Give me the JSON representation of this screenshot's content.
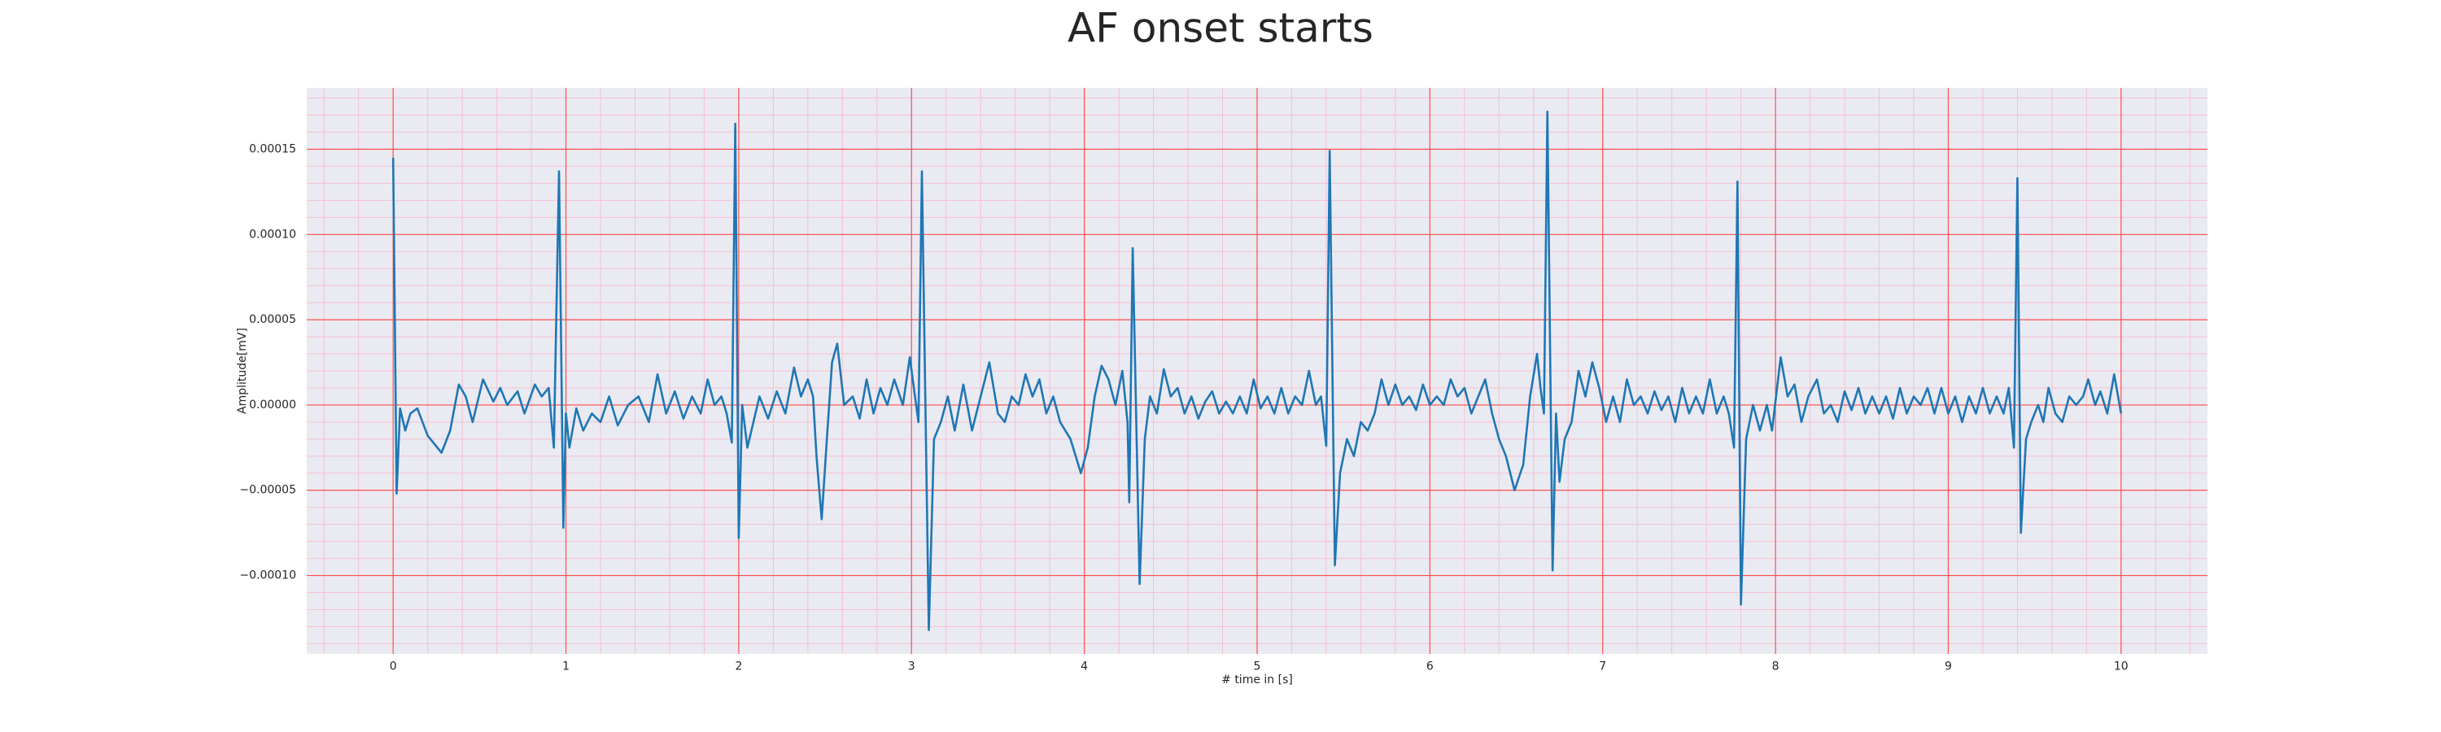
{
  "chart_data": {
    "type": "line",
    "title": "AF onset starts",
    "x_label": "# time in [s]",
    "y_label": "Amplitude[mV]",
    "xlim": [
      -0.5,
      10.5
    ],
    "ylim": [
      -0.000146,
      0.000186
    ],
    "xticks": [
      0,
      1,
      2,
      3,
      4,
      5,
      6,
      7,
      8,
      9,
      10
    ],
    "yticks": [
      {
        "value": -0.0001,
        "label": "−0.00010"
      },
      {
        "value": -5e-05,
        "label": "−0.00005"
      },
      {
        "value": 0,
        "label": "0.00000"
      },
      {
        "value": 5e-05,
        "label": "0.00005"
      },
      {
        "value": 0.0001,
        "label": "0.00010"
      },
      {
        "value": 0.00015,
        "label": "0.00015"
      }
    ],
    "grid": true,
    "minor_grid": true,
    "grid_color": "#ff4d4d",
    "minor_grid_color": "#f6c1cf",
    "background_color": "#eaeaf2",
    "series": [
      {
        "color": "#1f77b4",
        "x": [
          0,
          0.02,
          0.04,
          0.07,
          0.1,
          0.14,
          0.2,
          0.28,
          0.33,
          0.38,
          0.42,
          0.46,
          0.52,
          0.58,
          0.62,
          0.66,
          0.72,
          0.76,
          0.82,
          0.86,
          0.9,
          0.93,
          0.96,
          0.985,
          1.0,
          1.02,
          1.06,
          1.1,
          1.15,
          1.2,
          1.25,
          1.3,
          1.36,
          1.42,
          1.48,
          1.53,
          1.58,
          1.63,
          1.68,
          1.73,
          1.78,
          1.82,
          1.86,
          1.9,
          1.93,
          1.96,
          1.98,
          2.0,
          2.02,
          2.05,
          2.12,
          2.17,
          2.22,
          2.27,
          2.32,
          2.36,
          2.4,
          2.43,
          2.45,
          2.48,
          2.51,
          2.54,
          2.57,
          2.61,
          2.66,
          2.7,
          2.74,
          2.78,
          2.82,
          2.86,
          2.9,
          2.95,
          2.99,
          3.02,
          3.04,
          3.06,
          3.1,
          3.13,
          3.17,
          3.21,
          3.25,
          3.3,
          3.35,
          3.4,
          3.45,
          3.5,
          3.54,
          3.58,
          3.62,
          3.66,
          3.7,
          3.74,
          3.78,
          3.82,
          3.86,
          3.92,
          3.98,
          4.02,
          4.06,
          4.1,
          4.14,
          4.18,
          4.22,
          4.25,
          4.26,
          4.28,
          4.32,
          4.35,
          4.38,
          4.42,
          4.46,
          4.5,
          4.54,
          4.58,
          4.62,
          4.66,
          4.7,
          4.74,
          4.78,
          4.82,
          4.86,
          4.9,
          4.94,
          4.98,
          5.02,
          5.06,
          5.1,
          5.14,
          5.18,
          5.22,
          5.26,
          5.3,
          5.34,
          5.37,
          5.4,
          5.42,
          5.45,
          5.48,
          5.52,
          5.56,
          5.6,
          5.64,
          5.68,
          5.72,
          5.76,
          5.8,
          5.84,
          5.88,
          5.92,
          5.96,
          6.0,
          6.04,
          6.08,
          6.12,
          6.16,
          6.2,
          6.24,
          6.28,
          6.32,
          6.36,
          6.4,
          6.44,
          6.49,
          6.54,
          6.58,
          6.62,
          6.64,
          6.66,
          6.68,
          6.71,
          6.73,
          6.75,
          6.78,
          6.82,
          6.86,
          6.9,
          6.94,
          6.98,
          7.02,
          7.06,
          7.1,
          7.14,
          7.18,
          7.22,
          7.26,
          7.3,
          7.34,
          7.38,
          7.42,
          7.46,
          7.5,
          7.54,
          7.58,
          7.62,
          7.66,
          7.7,
          7.73,
          7.76,
          7.78,
          7.8,
          7.83,
          7.87,
          7.91,
          7.95,
          7.98,
          8.03,
          8.07,
          8.11,
          8.15,
          8.19,
          8.24,
          8.28,
          8.32,
          8.36,
          8.4,
          8.44,
          8.48,
          8.52,
          8.56,
          8.6,
          8.64,
          8.68,
          8.72,
          8.76,
          8.8,
          8.84,
          8.88,
          8.92,
          8.96,
          9.0,
          9.04,
          9.08,
          9.12,
          9.16,
          9.2,
          9.24,
          9.28,
          9.32,
          9.35,
          9.38,
          9.4,
          9.42,
          9.45,
          9.48,
          9.52,
          9.55,
          9.58,
          9.62,
          9.66,
          9.7,
          9.74,
          9.78,
          9.81,
          9.85,
          9.88,
          9.92,
          9.96,
          10.0
        ],
        "values": [
          0.000145,
          -5.2e-05,
          -2e-06,
          -1.5e-05,
          -5e-06,
          -2e-06,
          -1.8e-05,
          -2.8e-05,
          -1.5e-05,
          1.2e-05,
          5e-06,
          -1e-05,
          1.5e-05,
          2e-06,
          1e-05,
          0,
          8e-06,
          -5e-06,
          1.2e-05,
          5e-06,
          1e-05,
          -2.5e-05,
          0.000137,
          -7.2e-05,
          -5e-06,
          -2.5e-05,
          -2e-06,
          -1.5e-05,
          -5e-06,
          -1e-05,
          5e-06,
          -1.2e-05,
          0,
          5e-06,
          -1e-05,
          1.8e-05,
          -5e-06,
          8e-06,
          -8e-06,
          5e-06,
          -5e-06,
          1.5e-05,
          0,
          5e-06,
          -5e-06,
          -2.2e-05,
          0.000165,
          -7.8e-05,
          0,
          -2.5e-05,
          5e-06,
          -8e-06,
          8e-06,
          -5e-06,
          2.2e-05,
          5e-06,
          1.5e-05,
          5e-06,
          -3e-05,
          -6.7e-05,
          -2e-05,
          2.5e-05,
          3.6e-05,
          0,
          5e-06,
          -8e-06,
          1.5e-05,
          -5e-06,
          1e-05,
          0,
          1.5e-05,
          0,
          2.8e-05,
          5e-06,
          -1e-05,
          0.000137,
          -0.000132,
          -2e-05,
          -1e-05,
          5e-06,
          -1.5e-05,
          1.2e-05,
          -1.5e-05,
          5e-06,
          2.5e-05,
          -5e-06,
          -1e-05,
          5e-06,
          0,
          1.8e-05,
          5e-06,
          1.5e-05,
          -5e-06,
          5e-06,
          -1e-05,
          -2e-05,
          -4e-05,
          -2.5e-05,
          5e-06,
          2.3e-05,
          1.5e-05,
          0,
          2e-05,
          -1e-05,
          -5.7e-05,
          9.2e-05,
          -0.000105,
          -2e-05,
          5e-06,
          -5e-06,
          2.1e-05,
          5e-06,
          1e-05,
          -5e-06,
          5e-06,
          -8e-06,
          2e-06,
          8e-06,
          -5e-06,
          2e-06,
          -5e-06,
          5e-06,
          -5e-06,
          1.5e-05,
          -2e-06,
          5e-06,
          -5e-06,
          1e-05,
          -5e-06,
          5e-06,
          0,
          2e-05,
          0,
          5e-06,
          -2.4e-05,
          0.000149,
          -9.4e-05,
          -4e-05,
          -2e-05,
          -3e-05,
          -1e-05,
          -1.5e-05,
          -5e-06,
          1.5e-05,
          0,
          1.2e-05,
          0,
          5e-06,
          -3e-06,
          1.2e-05,
          0,
          5e-06,
          0,
          1.5e-05,
          5e-06,
          1e-05,
          -5e-06,
          5e-06,
          1.5e-05,
          -5e-06,
          -2e-05,
          -3e-05,
          -5e-05,
          -3.5e-05,
          5e-06,
          3e-05,
          1e-05,
          -5e-06,
          0.000172,
          -9.7e-05,
          -5e-06,
          -4.5e-05,
          -2e-05,
          -1e-05,
          2e-05,
          5e-06,
          2.5e-05,
          1e-05,
          -1e-05,
          5e-06,
          -1e-05,
          1.5e-05,
          0,
          5e-06,
          -5e-06,
          8e-06,
          -3e-06,
          5e-06,
          -1e-05,
          1e-05,
          -5e-06,
          5e-06,
          -5e-06,
          1.5e-05,
          -5e-06,
          5e-06,
          -5e-06,
          -2.5e-05,
          0.000131,
          -0.000117,
          -2e-05,
          0,
          -1.5e-05,
          0,
          -1.5e-05,
          2.8e-05,
          5e-06,
          1.2e-05,
          -1e-05,
          5e-06,
          1.5e-05,
          -5e-06,
          0,
          -1e-05,
          8e-06,
          -3e-06,
          1e-05,
          -5e-06,
          5e-06,
          -5e-06,
          5e-06,
          -8e-06,
          1e-05,
          -5e-06,
          5e-06,
          0,
          1e-05,
          -5e-06,
          1e-05,
          -5e-06,
          5e-06,
          -1e-05,
          5e-06,
          -5e-06,
          1e-05,
          -5e-06,
          5e-06,
          -5e-06,
          1e-05,
          -2.5e-05,
          0.000133,
          -7.5e-05,
          -2e-05,
          -1e-05,
          0,
          -1e-05,
          1e-05,
          -5e-06,
          -1e-05,
          5e-06,
          0,
          5e-06,
          1.5e-05,
          0,
          8e-06,
          -5e-06,
          1.8e-05,
          -5e-06
        ]
      }
    ]
  }
}
